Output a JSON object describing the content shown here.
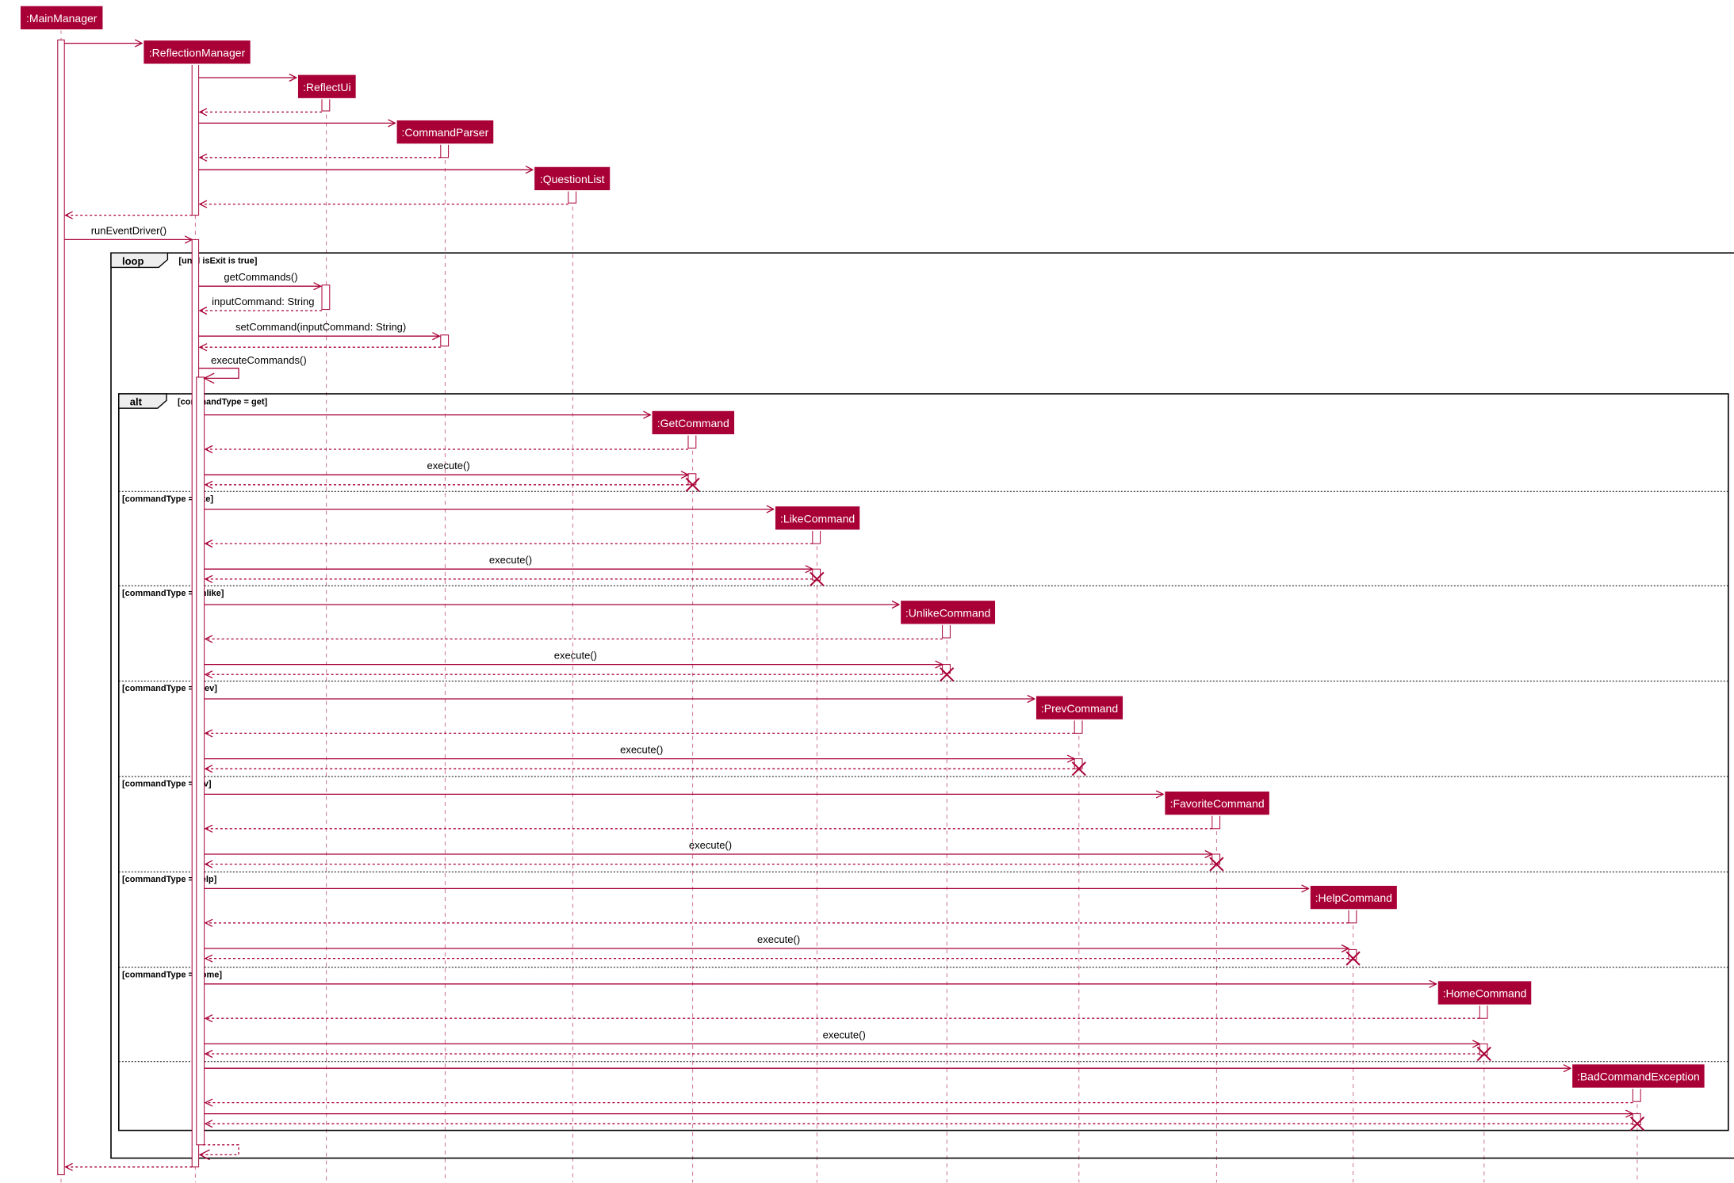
{
  "participants": [
    {
      "id": "mm",
      "label": ":MainManager"
    },
    {
      "id": "rm",
      "label": ":ReflectionManager"
    },
    {
      "id": "ui",
      "label": ":ReflectUi"
    },
    {
      "id": "cp",
      "label": ":CommandParser"
    },
    {
      "id": "ql",
      "label": ":QuestionList"
    },
    {
      "id": "gc",
      "label": ":GetCommand"
    },
    {
      "id": "lc",
      "label": ":LikeCommand"
    },
    {
      "id": "uc",
      "label": ":UnlikeCommand"
    },
    {
      "id": "pc",
      "label": ":PrevCommand"
    },
    {
      "id": "fc",
      "label": ":FavoriteCommand"
    },
    {
      "id": "hc",
      "label": ":HelpCommand"
    },
    {
      "id": "hoc",
      "label": ":HomeCommand"
    },
    {
      "id": "bce",
      "label": ":BadCommandException"
    }
  ],
  "loop": {
    "keyword": "loop",
    "guard": "[until isExit is true]"
  },
  "alt": {
    "keyword": "alt",
    "guards": [
      "[commandType = get]",
      "[commandType = like]",
      "[commandType = unlike]",
      "[commandType = prev]",
      "[commandType = fav]",
      "[commandType = help]",
      "[commandType = home]"
    ]
  },
  "messages": {
    "run_event_driver": "runEventDriver()",
    "get_commands": "getCommands()",
    "input_command": "inputCommand: String",
    "set_command": "setCommand(inputCommand: String)",
    "execute_commands": "executeCommands()",
    "execute": "execute()"
  },
  "colors": {
    "accent": "#A80036",
    "frame_tab": "#EEEEEE"
  }
}
